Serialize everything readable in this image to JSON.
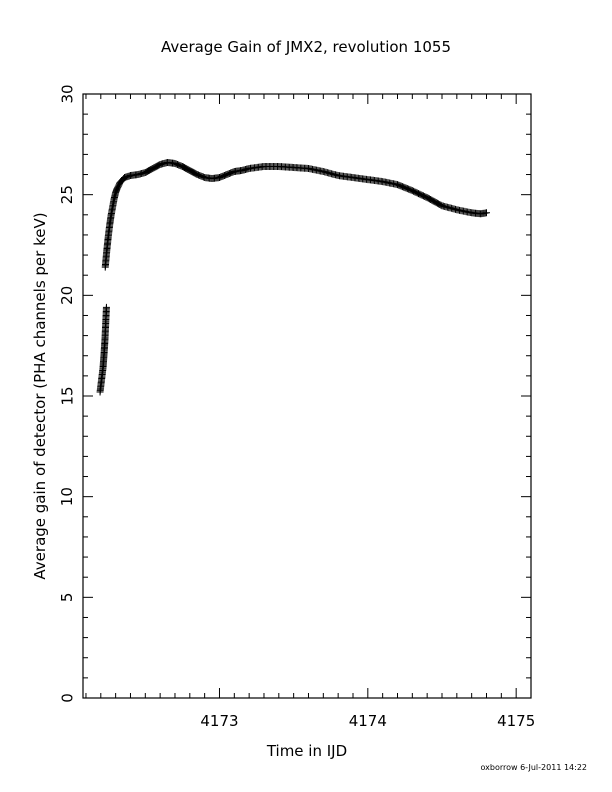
{
  "chart_data": {
    "type": "scatter",
    "title": "Average Gain of JMX2, revolution 1055",
    "xlabel": "Time in IJD",
    "ylabel": "Average gain of detector (PHA channels per keV)",
    "xlim": [
      4172.08,
      4175.1
    ],
    "ylim": [
      0,
      30
    ],
    "x_ticks_major": [
      4173,
      4174,
      4175
    ],
    "x_tick_labels": [
      "4173",
      "4174",
      "4175"
    ],
    "y_ticks_major": [
      0,
      5,
      10,
      15,
      20,
      25,
      30
    ],
    "y_tick_labels": [
      "0",
      "5",
      "10",
      "15",
      "20",
      "25",
      "30"
    ],
    "grid": false,
    "marker": "plus",
    "segments": [
      {
        "x": [
          4172.195,
          4172.205,
          4172.215,
          4172.222,
          4172.228,
          4172.233,
          4172.238
        ],
        "y": [
          15.2,
          15.8,
          16.4,
          17.1,
          17.8,
          18.6,
          19.4
        ]
      },
      {
        "x": [
          4172.23,
          4172.24,
          4172.25,
          4172.26,
          4172.27,
          4172.28,
          4172.29,
          4172.3,
          4172.31,
          4172.33,
          4172.36,
          4172.4,
          4172.45,
          4172.5,
          4172.55,
          4172.6,
          4172.65,
          4172.7,
          4172.75,
          4172.8,
          4172.85,
          4172.9,
          4172.95,
          4173.0,
          4173.05,
          4173.1,
          4173.15,
          4173.2,
          4173.3,
          4173.4,
          4173.5,
          4173.6,
          4173.7,
          4173.8,
          4173.9,
          4174.0,
          4174.1,
          4174.2,
          4174.3,
          4174.4,
          4174.5,
          4174.6,
          4174.7,
          4174.76,
          4174.8
        ],
        "y": [
          21.4,
          22.2,
          22.9,
          23.5,
          24.0,
          24.4,
          24.8,
          25.1,
          25.3,
          25.6,
          25.85,
          25.95,
          26.0,
          26.1,
          26.3,
          26.5,
          26.6,
          26.55,
          26.4,
          26.2,
          26.0,
          25.85,
          25.8,
          25.85,
          26.0,
          26.15,
          26.2,
          26.3,
          26.4,
          26.4,
          26.35,
          26.3,
          26.15,
          25.95,
          25.85,
          25.75,
          25.65,
          25.5,
          25.2,
          24.85,
          24.45,
          24.25,
          24.1,
          24.05,
          24.1
        ]
      }
    ]
  },
  "footer": {
    "text": "oxborrow  6-Jul-2011 14:22"
  }
}
